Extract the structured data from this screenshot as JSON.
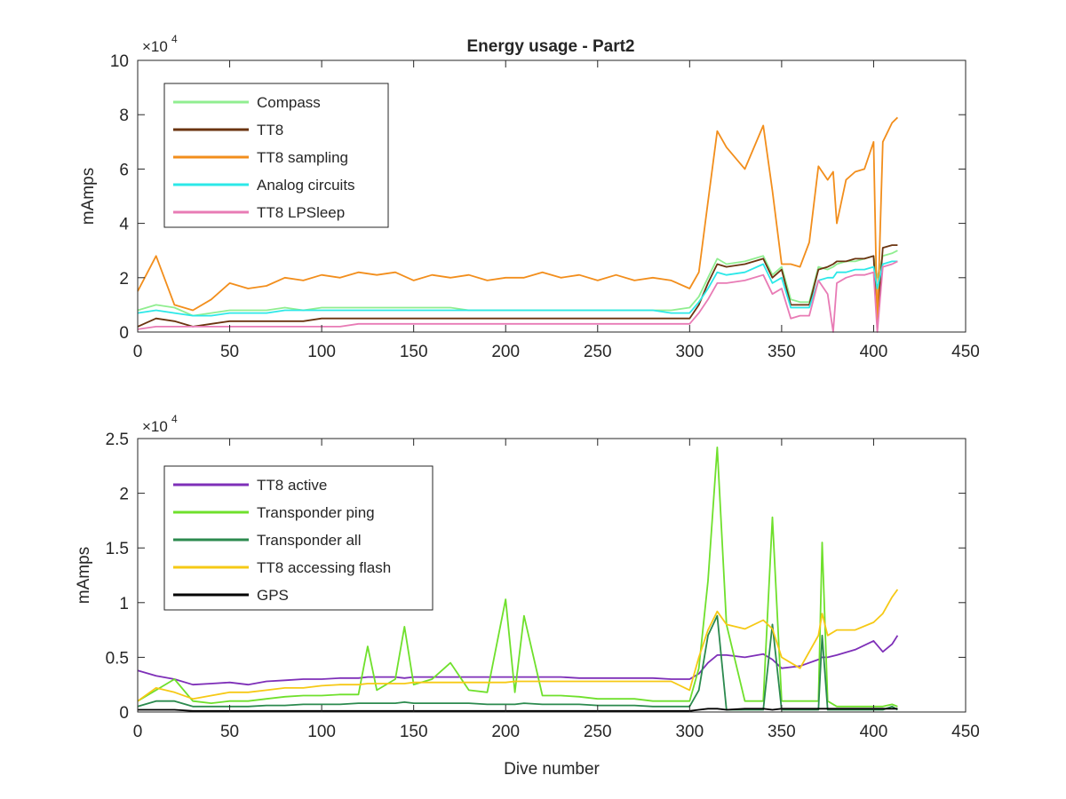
{
  "figure_title": "Energy usage - Part2",
  "chart_data": [
    {
      "type": "line",
      "title": "Energy usage - Part2",
      "xlabel": "",
      "ylabel": "mAmps",
      "xlim": [
        0,
        450
      ],
      "ylim": [
        0,
        10
      ],
      "y_exponent_label": "×10",
      "y_exponent_power": "4",
      "xticks": [
        "0",
        "50",
        "100",
        "150",
        "200",
        "250",
        "300",
        "350",
        "400",
        "450"
      ],
      "yticks": [
        "0",
        "2",
        "4",
        "6",
        "8",
        "10"
      ],
      "legend_position": "top-left",
      "grid": false,
      "x": [
        0,
        10,
        20,
        30,
        40,
        50,
        60,
        70,
        80,
        90,
        100,
        110,
        120,
        130,
        140,
        150,
        160,
        170,
        180,
        190,
        200,
        210,
        220,
        230,
        240,
        250,
        260,
        270,
        280,
        290,
        300,
        305,
        310,
        315,
        320,
        330,
        340,
        345,
        350,
        355,
        360,
        365,
        370,
        375,
        378,
        380,
        385,
        390,
        395,
        400,
        402,
        405,
        410,
        413
      ],
      "series": [
        {
          "name": "Compass",
          "color": "#90ee90",
          "values": [
            0.8,
            1.0,
            0.9,
            0.6,
            0.7,
            0.8,
            0.8,
            0.8,
            0.9,
            0.8,
            0.9,
            0.9,
            0.9,
            0.9,
            0.9,
            0.9,
            0.9,
            0.9,
            0.8,
            0.8,
            0.8,
            0.8,
            0.8,
            0.8,
            0.8,
            0.8,
            0.8,
            0.8,
            0.8,
            0.8,
            0.9,
            1.3,
            2.0,
            2.7,
            2.5,
            2.6,
            2.8,
            2.1,
            2.4,
            1.2,
            1.1,
            1.1,
            2.4,
            2.3,
            2.4,
            2.5,
            2.6,
            2.6,
            2.7,
            2.8,
            2.0,
            2.8,
            2.9,
            3.0
          ]
        },
        {
          "name": "TT8",
          "color": "#6b3410",
          "values": [
            0.2,
            0.5,
            0.4,
            0.2,
            0.3,
            0.4,
            0.4,
            0.4,
            0.4,
            0.4,
            0.5,
            0.5,
            0.5,
            0.5,
            0.5,
            0.5,
            0.5,
            0.5,
            0.5,
            0.5,
            0.5,
            0.5,
            0.5,
            0.5,
            0.5,
            0.5,
            0.5,
            0.5,
            0.5,
            0.5,
            0.5,
            1.0,
            1.8,
            2.5,
            2.4,
            2.5,
            2.7,
            2.0,
            2.3,
            1.0,
            1.0,
            1.0,
            2.3,
            2.4,
            2.5,
            2.6,
            2.6,
            2.7,
            2.7,
            2.8,
            0.4,
            3.1,
            3.2,
            3.2
          ]
        },
        {
          "name": "TT8 sampling",
          "color": "#f28e1c",
          "values": [
            1.5,
            2.8,
            1.0,
            0.8,
            1.2,
            1.8,
            1.6,
            1.7,
            2.0,
            1.9,
            2.1,
            2.0,
            2.2,
            2.1,
            2.2,
            1.9,
            2.1,
            2.0,
            2.1,
            1.9,
            2.0,
            2.0,
            2.2,
            2.0,
            2.1,
            1.9,
            2.1,
            1.9,
            2.0,
            1.9,
            1.6,
            2.2,
            4.8,
            7.4,
            6.8,
            6.0,
            7.6,
            5.2,
            2.5,
            2.5,
            2.4,
            3.3,
            6.1,
            5.6,
            5.9,
            4.0,
            5.6,
            5.9,
            6.0,
            7.0,
            0.2,
            7.0,
            7.7,
            7.9
          ]
        },
        {
          "name": "Analog circuits",
          "color": "#2ce8e8",
          "values": [
            0.7,
            0.8,
            0.7,
            0.6,
            0.6,
            0.7,
            0.7,
            0.7,
            0.8,
            0.8,
            0.8,
            0.8,
            0.8,
            0.8,
            0.8,
            0.8,
            0.8,
            0.8,
            0.8,
            0.8,
            0.8,
            0.8,
            0.8,
            0.8,
            0.8,
            0.8,
            0.8,
            0.8,
            0.8,
            0.7,
            0.7,
            1.1,
            1.6,
            2.2,
            2.1,
            2.2,
            2.5,
            1.8,
            2.0,
            0.9,
            0.9,
            0.9,
            1.9,
            2.0,
            2.0,
            2.2,
            2.2,
            2.3,
            2.3,
            2.4,
            1.6,
            2.5,
            2.6,
            2.6
          ]
        },
        {
          "name": "TT8 LPSleep",
          "color": "#e87bb5",
          "values": [
            0.1,
            0.2,
            0.2,
            0.2,
            0.2,
            0.2,
            0.2,
            0.2,
            0.2,
            0.2,
            0.2,
            0.2,
            0.3,
            0.3,
            0.3,
            0.3,
            0.3,
            0.3,
            0.3,
            0.3,
            0.3,
            0.3,
            0.3,
            0.3,
            0.3,
            0.3,
            0.3,
            0.3,
            0.3,
            0.3,
            0.3,
            0.7,
            1.2,
            1.8,
            1.8,
            1.9,
            2.1,
            1.4,
            1.6,
            0.5,
            0.6,
            0.6,
            1.9,
            1.4,
            0.0,
            1.8,
            2.0,
            2.1,
            2.1,
            2.2,
            0.0,
            2.4,
            2.5,
            2.6
          ]
        }
      ]
    },
    {
      "type": "line",
      "title": "",
      "xlabel": "Dive number",
      "ylabel": "mAmps",
      "xlim": [
        0,
        450
      ],
      "ylim": [
        0,
        2.5
      ],
      "y_exponent_label": "×10",
      "y_exponent_power": "4",
      "xticks": [
        "0",
        "50",
        "100",
        "150",
        "200",
        "250",
        "300",
        "350",
        "400",
        "450"
      ],
      "yticks": [
        "0",
        "0.5",
        "1",
        "1.5",
        "2",
        "2.5"
      ],
      "legend_position": "top-left",
      "grid": false,
      "x": [
        0,
        10,
        20,
        30,
        40,
        50,
        60,
        70,
        80,
        90,
        100,
        110,
        120,
        125,
        130,
        140,
        145,
        150,
        160,
        170,
        180,
        190,
        200,
        205,
        210,
        220,
        230,
        240,
        250,
        260,
        270,
        280,
        290,
        300,
        305,
        310,
        315,
        320,
        330,
        340,
        345,
        350,
        360,
        370,
        372,
        375,
        380,
        390,
        400,
        405,
        410,
        413
      ],
      "series": [
        {
          "name": "TT8 active",
          "color": "#7e2fb8",
          "values": [
            0.38,
            0.33,
            0.3,
            0.25,
            0.26,
            0.27,
            0.25,
            0.28,
            0.29,
            0.3,
            0.3,
            0.31,
            0.31,
            0.32,
            0.32,
            0.32,
            0.31,
            0.32,
            0.32,
            0.32,
            0.32,
            0.32,
            0.32,
            0.32,
            0.32,
            0.32,
            0.32,
            0.31,
            0.31,
            0.31,
            0.31,
            0.31,
            0.3,
            0.3,
            0.35,
            0.45,
            0.52,
            0.52,
            0.5,
            0.53,
            0.48,
            0.4,
            0.42,
            0.48,
            0.5,
            0.5,
            0.52,
            0.57,
            0.65,
            0.55,
            0.62,
            0.7
          ]
        },
        {
          "name": "Transponder ping",
          "color": "#6fe02c",
          "values": [
            0.1,
            0.2,
            0.3,
            0.1,
            0.08,
            0.1,
            0.1,
            0.12,
            0.14,
            0.15,
            0.15,
            0.16,
            0.16,
            0.6,
            0.2,
            0.3,
            0.78,
            0.25,
            0.3,
            0.45,
            0.2,
            0.18,
            1.03,
            0.18,
            0.88,
            0.15,
            0.15,
            0.14,
            0.12,
            0.12,
            0.12,
            0.1,
            0.1,
            0.1,
            0.4,
            1.2,
            2.42,
            0.8,
            0.1,
            0.1,
            1.78,
            0.1,
            0.1,
            0.1,
            1.55,
            0.1,
            0.05,
            0.05,
            0.05,
            0.05,
            0.07,
            0.05
          ]
        },
        {
          "name": "Transponder all",
          "color": "#2b8a4e",
          "values": [
            0.05,
            0.1,
            0.1,
            0.05,
            0.05,
            0.05,
            0.05,
            0.06,
            0.06,
            0.07,
            0.07,
            0.07,
            0.08,
            0.08,
            0.08,
            0.08,
            0.09,
            0.08,
            0.08,
            0.08,
            0.08,
            0.07,
            0.07,
            0.07,
            0.08,
            0.07,
            0.07,
            0.07,
            0.06,
            0.06,
            0.06,
            0.05,
            0.05,
            0.05,
            0.2,
            0.7,
            0.88,
            0.02,
            0.02,
            0.02,
            0.8,
            0.02,
            0.02,
            0.02,
            0.7,
            0.02,
            0.02,
            0.02,
            0.02,
            0.02,
            0.05,
            0.02
          ]
        },
        {
          "name": "TT8 accessing flash",
          "color": "#f6c915",
          "values": [
            0.1,
            0.22,
            0.18,
            0.12,
            0.15,
            0.18,
            0.18,
            0.2,
            0.22,
            0.22,
            0.24,
            0.25,
            0.25,
            0.26,
            0.26,
            0.26,
            0.26,
            0.27,
            0.27,
            0.27,
            0.27,
            0.27,
            0.27,
            0.28,
            0.28,
            0.28,
            0.28,
            0.28,
            0.28,
            0.28,
            0.28,
            0.28,
            0.28,
            0.2,
            0.5,
            0.75,
            0.92,
            0.8,
            0.76,
            0.84,
            0.76,
            0.5,
            0.4,
            0.7,
            0.9,
            0.7,
            0.75,
            0.75,
            0.82,
            0.9,
            1.05,
            1.12
          ]
        },
        {
          "name": "GPS",
          "color": "#000000",
          "values": [
            0.02,
            0.02,
            0.02,
            0.01,
            0.01,
            0.01,
            0.01,
            0.01,
            0.01,
            0.01,
            0.01,
            0.01,
            0.01,
            0.01,
            0.01,
            0.01,
            0.01,
            0.01,
            0.01,
            0.01,
            0.01,
            0.01,
            0.01,
            0.01,
            0.01,
            0.01,
            0.01,
            0.01,
            0.01,
            0.01,
            0.01,
            0.01,
            0.01,
            0.01,
            0.02,
            0.03,
            0.03,
            0.02,
            0.03,
            0.03,
            0.02,
            0.03,
            0.03,
            0.03,
            0.03,
            0.03,
            0.03,
            0.03,
            0.03,
            0.03,
            0.03,
            0.03
          ]
        }
      ]
    }
  ]
}
